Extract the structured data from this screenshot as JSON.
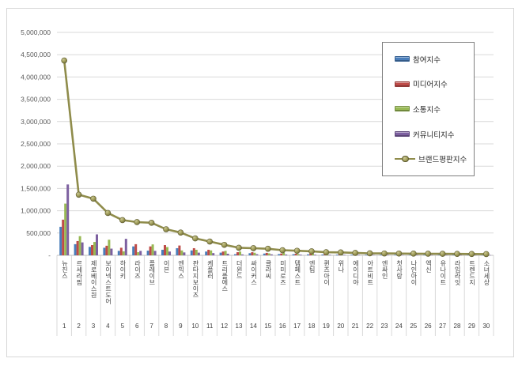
{
  "chart_data": {
    "type": "bar",
    "subtype": "clustered-columns-with-overlay-line",
    "title": "",
    "xlabel": "",
    "ylabel": "",
    "ylim": [
      0,
      5000000
    ],
    "ytick_step": 500000,
    "grid": "horizontal",
    "legend_position": "right-overlay",
    "y_axis": {
      "ticks": [
        "-",
        "500,000",
        "1,000,000",
        "1,500,000",
        "2,000,000",
        "2,500,000",
        "3,000,000",
        "3,500,000",
        "4,000,000",
        "4,500,000",
        "5,000,000"
      ]
    },
    "categories": [
      "뉴진스",
      "르세라핌",
      "제로베이스원",
      "보이넥스트도어",
      "하이키",
      "라이즈",
      "플레이브",
      "이븐",
      "엔믹스",
      "판타지보이즈",
      "케플러",
      "트리플에스",
      "더윈드",
      "싸이커스",
      "클라씨",
      "미미로즈",
      "템페스트",
      "엔팀",
      "퀸즈아이",
      "위나",
      "에이디야",
      "아트비트",
      "엔싸인",
      "첫사랑",
      "나인아이",
      "엑신",
      "유나이트",
      "라임라잇",
      "트렌드지",
      "소녀세상"
    ],
    "ranks": [
      "1",
      "2",
      "3",
      "4",
      "5",
      "6",
      "7",
      "8",
      "9",
      "10",
      "11",
      "12",
      "13",
      "14",
      "15",
      "16",
      "17",
      "18",
      "19",
      "20",
      "21",
      "22",
      "23",
      "24",
      "25",
      "26",
      "27",
      "28",
      "29",
      "30"
    ],
    "series": [
      {
        "name": "참여지수",
        "kind": "column",
        "color": "#4A7EBB",
        "values": [
          640000,
          250000,
          190000,
          170000,
          100000,
          200000,
          105000,
          125000,
          160000,
          110000,
          85000,
          60000,
          25000,
          48000,
          40000,
          28000,
          25000,
          22000,
          18000,
          15000,
          14000,
          13000,
          12000,
          11000,
          10000,
          10000,
          9000,
          8000,
          8000,
          7000
        ]
      },
      {
        "name": "미디어지수",
        "kind": "column",
        "color": "#BE4B48",
        "values": [
          800000,
          320000,
          230000,
          215000,
          170000,
          250000,
          200000,
          230000,
          220000,
          160000,
          125000,
          85000,
          70000,
          70000,
          55000,
          40000,
          35000,
          30000,
          26000,
          24000,
          22000,
          20000,
          18000,
          16000,
          15000,
          14000,
          13000,
          12000,
          11000,
          10000
        ]
      },
      {
        "name": "소통지수",
        "kind": "column",
        "color": "#98B954",
        "values": [
          1160000,
          430000,
          300000,
          350000,
          90000,
          70000,
          245000,
          185000,
          110000,
          125000,
          110000,
          100000,
          85000,
          58000,
          45000,
          60000,
          30000,
          35000,
          22000,
          18000,
          16000,
          15000,
          14000,
          13000,
          12000,
          11000,
          11000,
          10000,
          9000,
          9000
        ]
      },
      {
        "name": "커뮤니티지수",
        "kind": "column",
        "color": "#7D60A0",
        "values": [
          1590000,
          290000,
          470000,
          150000,
          370000,
          100000,
          100000,
          85000,
          65000,
          60000,
          50000,
          36000,
          20000,
          25000,
          22000,
          18000,
          15000,
          14000,
          12000,
          11000,
          10000,
          9000,
          9000,
          8000,
          8000,
          7000,
          7000,
          7000,
          6000,
          6000
        ]
      },
      {
        "name": "브랜드평판지수",
        "kind": "line",
        "color": "#8F8C4B",
        "values": [
          4370000,
          1360000,
          1270000,
          950000,
          790000,
          745000,
          730000,
          585000,
          510000,
          380000,
          310000,
          235000,
          170000,
          160000,
          148000,
          115000,
          102000,
          90000,
          70000,
          66000,
          55000,
          45000,
          42000,
          40000,
          38000,
          36000,
          34000,
          32000,
          30000,
          28000
        ]
      }
    ],
    "colors": {
      "gridline": "#D9D9D9",
      "axis_line": "#BFBFBF",
      "frame_border": "#D7D7D7",
      "legend_border": "#7F7F7F",
      "marker_edge": "#5E5B30"
    }
  }
}
